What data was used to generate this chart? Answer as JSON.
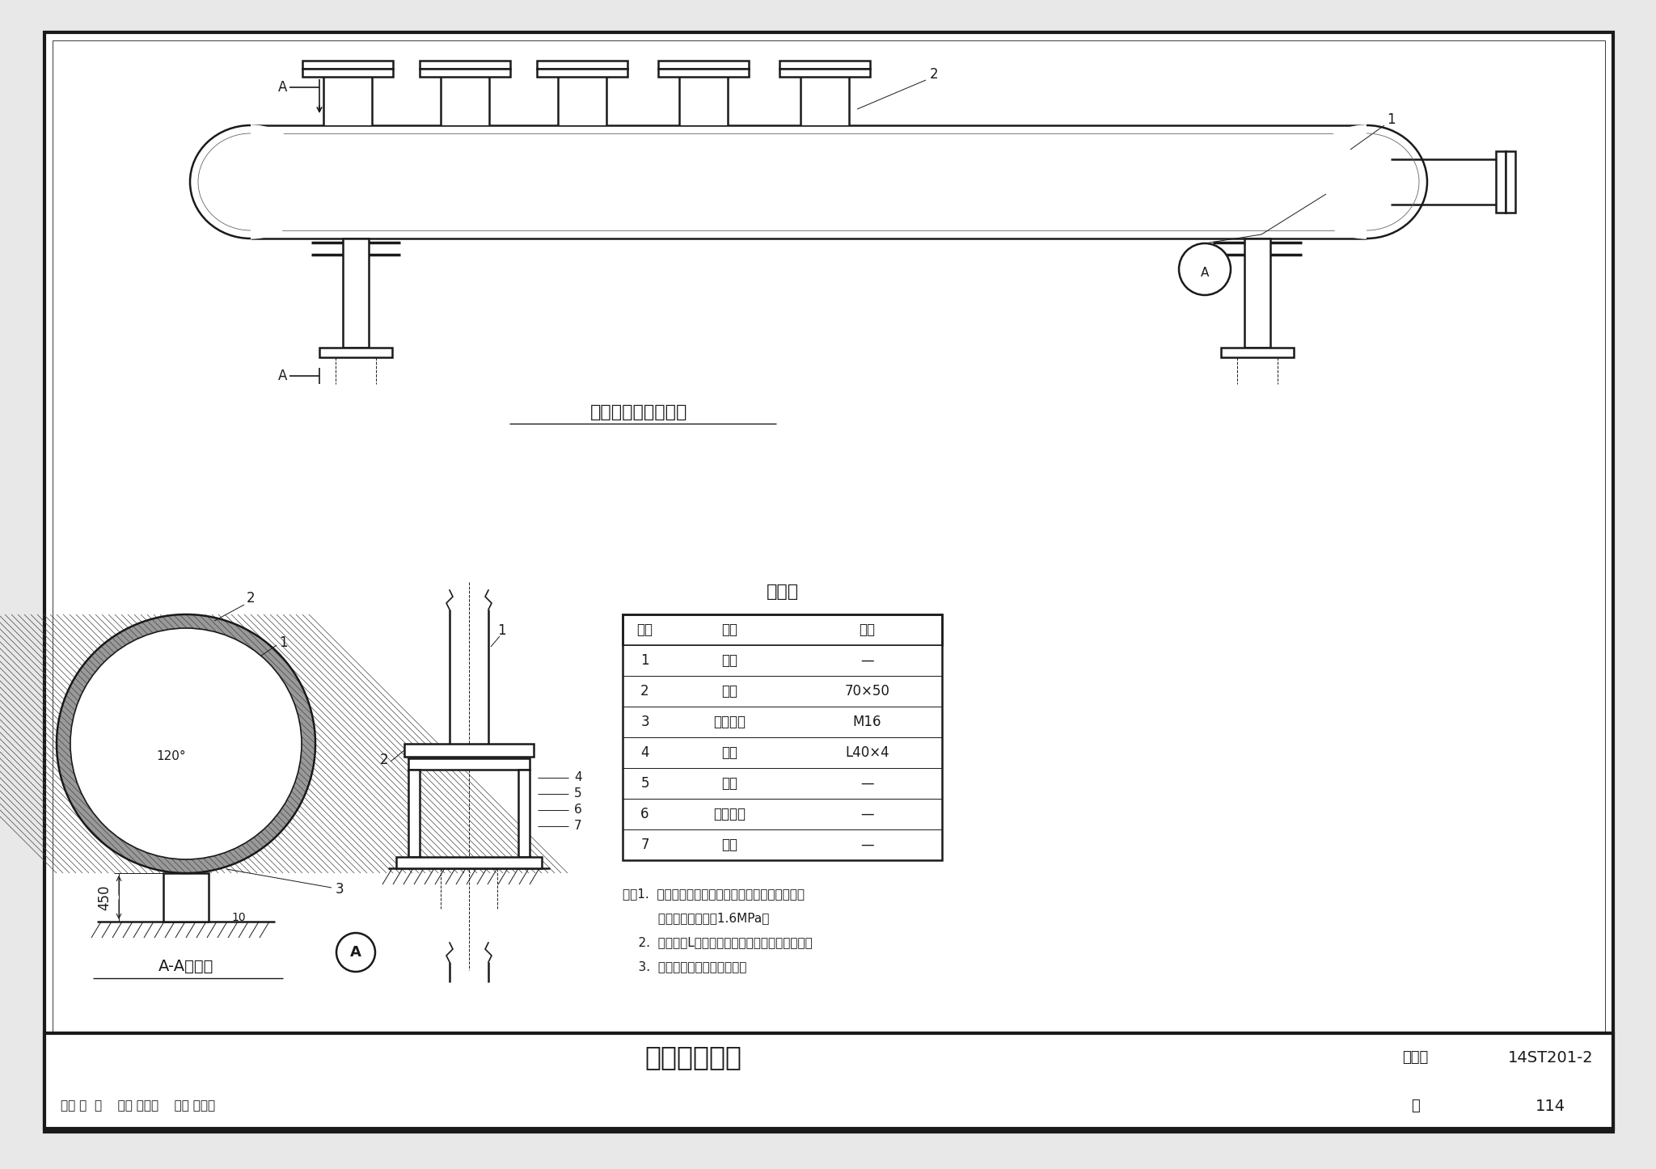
{
  "title": "分集水器安装立面图",
  "section_title": "A-A剖面图",
  "materials_title": "材料表",
  "drawing_title": "分集水器安装",
  "drawing_number": "14ST201-2",
  "page": "114",
  "figure_set": "图集号",
  "page_label": "页",
  "materials": [
    {
      "num": "1",
      "name": "抱卡",
      "spec": "—"
    },
    {
      "num": "2",
      "name": "垫木",
      "spec": "70×50"
    },
    {
      "num": "3",
      "name": "膨胀螺栓",
      "spec": "M16"
    },
    {
      "num": "4",
      "name": "角钢",
      "spec": "L40×4"
    },
    {
      "num": "5",
      "name": "平垫",
      "spec": "—"
    },
    {
      "num": "6",
      "name": "弹簧垫片",
      "spec": "—"
    },
    {
      "num": "7",
      "name": "螺母",
      "spec": "—"
    }
  ],
  "notes_line1": "注：1.  进出水口法兰均为蝶阀法兰，泄水管口用平焊",
  "notes_line2": "         法兰，法兰耐压为1.6MPa。",
  "notes_line3": "    2.  筒体长度L随管数不同，由工程设计人员确定。",
  "notes_line4": "    3.  分集水器安装地面需平整。",
  "footer_labels": [
    "审核",
    "赵",
    "展",
    "校对",
    "赵东明",
    "设计",
    "严赏斌"
  ],
  "bg_color": "#e8e8e8",
  "paper_color": "#ffffff",
  "line_color": "#1a1a1a",
  "dim_color": "#333333",
  "hatch_color": "#555555",
  "dimension_450": "450",
  "dimension_10": "10",
  "angle_120": "120°"
}
